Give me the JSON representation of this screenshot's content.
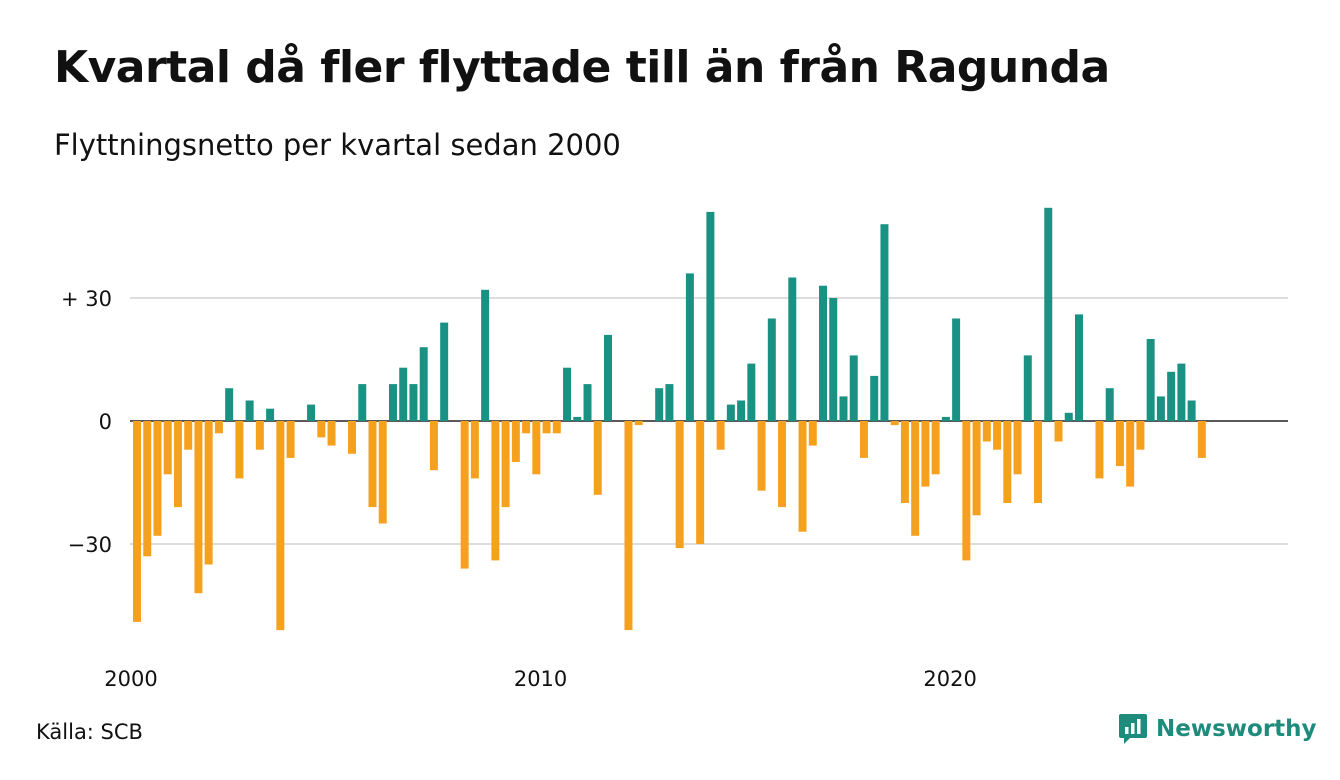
{
  "title": "Kvartal då fler flyttade till än från Ragunda",
  "subtitle": "Flyttningsnetto per kvartal sedan 2000",
  "source": "Källa: SCB",
  "brand": {
    "name": "Newsworthy",
    "icon": "newsworthy-logo-icon"
  },
  "colors": {
    "positive": "#1a9283",
    "negative": "#f6a11e",
    "grid": "#dddddd",
    "zero_line": "#222222"
  },
  "chart_data": {
    "type": "bar",
    "title": "Kvartal då fler flyttade till än från Ragunda",
    "subtitle": "Flyttningsnetto per kvartal sedan 2000",
    "xlabel": "",
    "ylabel": "",
    "x_start": "2000 Q1",
    "x_interval": "quarter",
    "ylim": [
      -52,
      52
    ],
    "y_ticks": [
      {
        "value": 30,
        "label": "+ 30"
      },
      {
        "value": 0,
        "label": "0"
      },
      {
        "value": -30,
        "label": "−30"
      }
    ],
    "x_ticks": [
      {
        "value": "2000 Q1",
        "label": "2000"
      },
      {
        "value": "2010 Q1",
        "label": "2010"
      },
      {
        "value": "2020 Q1",
        "label": "2020"
      }
    ],
    "grid": true,
    "legend": false,
    "values": [
      -49,
      -33,
      -28,
      -13,
      -21,
      -7,
      -42,
      -35,
      -3,
      8,
      -14,
      5,
      -7,
      3,
      -51,
      -9,
      0,
      4,
      -4,
      -6,
      0,
      -8,
      9,
      -21,
      -25,
      9,
      13,
      9,
      18,
      -12,
      24,
      0,
      -36,
      -14,
      32,
      -34,
      -21,
      -10,
      -3,
      -13,
      -3,
      -3,
      13,
      1,
      9,
      -18,
      21,
      0,
      -51,
      -1,
      0,
      8,
      9,
      -31,
      36,
      -30,
      51,
      -7,
      4,
      5,
      14,
      -17,
      25,
      -21,
      35,
      -27,
      -6,
      33,
      30,
      6,
      16,
      -9,
      11,
      48,
      -1,
      -20,
      -28,
      -16,
      -13,
      1,
      25,
      -34,
      -23,
      -5,
      -7,
      -20,
      -13,
      16,
      -20,
      52,
      -5,
      2,
      26,
      0,
      -14,
      8,
      -11,
      -16,
      -7,
      20,
      6,
      12,
      14,
      5,
      -9
    ]
  }
}
